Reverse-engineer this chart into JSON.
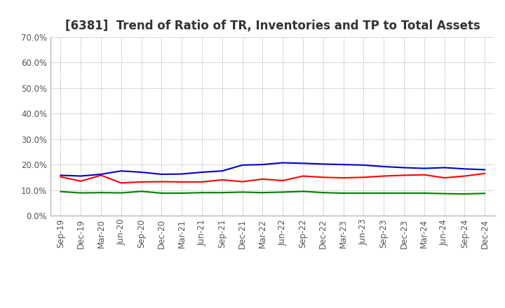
{
  "title": "[6381]  Trend of Ratio of TR, Inventories and TP to Total Assets",
  "x_labels": [
    "Sep-19",
    "Dec-19",
    "Mar-20",
    "Jun-20",
    "Sep-20",
    "Dec-20",
    "Mar-21",
    "Jun-21",
    "Sep-21",
    "Dec-21",
    "Mar-22",
    "Jun-22",
    "Sep-22",
    "Dec-22",
    "Mar-23",
    "Jun-23",
    "Sep-23",
    "Dec-23",
    "Mar-24",
    "Jun-24",
    "Sep-24",
    "Dec-24"
  ],
  "trade_receivables": [
    0.152,
    0.135,
    0.158,
    0.128,
    0.132,
    0.133,
    0.132,
    0.132,
    0.14,
    0.133,
    0.143,
    0.137,
    0.155,
    0.15,
    0.148,
    0.15,
    0.155,
    0.158,
    0.16,
    0.148,
    0.155,
    0.165
  ],
  "inventories": [
    0.158,
    0.155,
    0.162,
    0.175,
    0.17,
    0.162,
    0.163,
    0.17,
    0.175,
    0.198,
    0.2,
    0.207,
    0.205,
    0.202,
    0.2,
    0.198,
    0.192,
    0.188,
    0.185,
    0.188,
    0.183,
    0.18
  ],
  "trade_payables": [
    0.094,
    0.089,
    0.09,
    0.089,
    0.095,
    0.088,
    0.088,
    0.09,
    0.09,
    0.092,
    0.09,
    0.092,
    0.095,
    0.09,
    0.088,
    0.088,
    0.088,
    0.088,
    0.088,
    0.086,
    0.085,
    0.087
  ],
  "colors": {
    "trade_receivables": "#ff0000",
    "inventories": "#0000cc",
    "trade_payables": "#008000"
  },
  "ylim": [
    0.0,
    0.7
  ],
  "yticks": [
    0.0,
    0.1,
    0.2,
    0.3,
    0.4,
    0.5,
    0.6,
    0.7
  ],
  "background_color": "#ffffff",
  "grid_color": "#999999",
  "title_color": "#333333",
  "tick_color": "#555555",
  "line_width": 1.5,
  "title_fontsize": 12,
  "tick_fontsize": 8.5,
  "legend_fontsize": 9
}
